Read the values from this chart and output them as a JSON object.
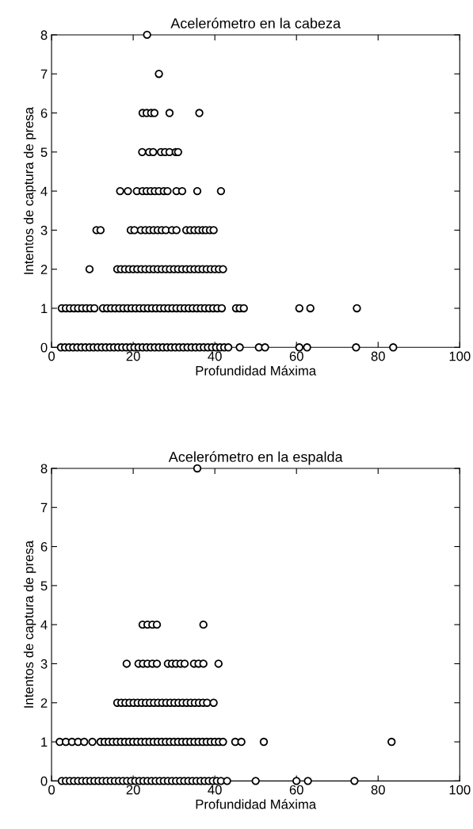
{
  "chart_data": [
    {
      "type": "scatter",
      "title": "Acelerómetro en la cabeza",
      "xlabel": "Profundidad Máxima",
      "ylabel": "Intentos de captura de presa",
      "xlim": [
        0,
        100
      ],
      "ylim": [
        0,
        8
      ],
      "xticks": [
        0,
        20,
        40,
        60,
        80,
        100
      ],
      "yticks": [
        0,
        1,
        2,
        3,
        4,
        5,
        6,
        7,
        8
      ],
      "marker": "circle",
      "grid": false,
      "series": [
        {
          "color": "#000000",
          "x": [
            23.4,
            26.3,
            22.3,
            23.3,
            24.4,
            25.2,
            28.9,
            36.2,
            22.2,
            23.9,
            24.9,
            26.8,
            27.8,
            28.9,
            30.4,
            31.0,
            16.8,
            18.7,
            20.9,
            22.3,
            23.3,
            24.3,
            25.3,
            26.3,
            27.5,
            28.4,
            30.6,
            32.0,
            35.7,
            41.5,
            11.0,
            12.0,
            19.4,
            20.3,
            21.9,
            23,
            24,
            25,
            26,
            27,
            28,
            29.5,
            30.6,
            33,
            34,
            35,
            36,
            37,
            37.8,
            38.8,
            39.7,
            9.3,
            16.1,
            17,
            18,
            19,
            20,
            21,
            22,
            23,
            24,
            25,
            26,
            27,
            28,
            29,
            30,
            31,
            32,
            33,
            34,
            35,
            36,
            37,
            38,
            39,
            40,
            41,
            42,
            2.5,
            3.5,
            4.5,
            5.5,
            6.5,
            7.5,
            8.5,
            9.5,
            10.5,
            12.6,
            13.6,
            14.6,
            15.6,
            16.6,
            17.6,
            18.6,
            19.6,
            20.6,
            21.6,
            22.6,
            23.6,
            24.6,
            25.6,
            26.6,
            27.6,
            28.6,
            29.6,
            30.6,
            31.6,
            32.6,
            33.6,
            34.6,
            35.6,
            36.6,
            37.6,
            38.6,
            39.6,
            40.6,
            41.7,
            45.2,
            46.1,
            47.1,
            60.7,
            63.4,
            74.8,
            2.3,
            3.3,
            4.3,
            5.3,
            6.3,
            7.3,
            8.3,
            9.3,
            10.3,
            11.3,
            12.3,
            13.3,
            14.3,
            15.3,
            16.3,
            17.3,
            18.3,
            19.3,
            20.3,
            21.3,
            22.3,
            23.3,
            24.3,
            25.3,
            26.3,
            27.3,
            28.3,
            29.3,
            30.3,
            31.3,
            32.3,
            33.3,
            34.3,
            35.3,
            36.3,
            37.3,
            38.3,
            39.3,
            40.3,
            41.3,
            42.3,
            43.3,
            46.1,
            50.8,
            52.3,
            60.7,
            62.6,
            74.6,
            83.7
          ],
          "values": [
            8,
            7,
            6,
            6,
            6,
            6,
            6,
            6,
            5,
            5,
            5,
            5,
            5,
            5,
            5,
            5,
            4,
            4,
            4,
            4,
            4,
            4,
            4,
            4,
            4,
            4,
            4,
            4,
            4,
            4,
            3,
            3,
            3,
            3,
            3,
            3,
            3,
            3,
            3,
            3,
            3,
            3,
            3,
            3,
            3,
            3,
            3,
            3,
            3,
            3,
            3,
            2,
            2,
            2,
            2,
            2,
            2,
            2,
            2,
            2,
            2,
            2,
            2,
            2,
            2,
            2,
            2,
            2,
            2,
            2,
            2,
            2,
            2,
            2,
            2,
            2,
            2,
            2,
            2,
            1,
            1,
            1,
            1,
            1,
            1,
            1,
            1,
            1,
            1,
            1,
            1,
            1,
            1,
            1,
            1,
            1,
            1,
            1,
            1,
            1,
            1,
            1,
            1,
            1,
            1,
            1,
            1,
            1,
            1,
            1,
            1,
            1,
            1,
            1,
            1,
            1,
            1,
            1,
            1,
            1,
            1,
            1,
            1,
            1,
            0,
            0,
            0,
            0,
            0,
            0,
            0,
            0,
            0,
            0,
            0,
            0,
            0,
            0,
            0,
            0,
            0,
            0,
            0,
            0,
            0,
            0,
            0,
            0,
            0,
            0,
            0,
            0,
            0,
            0,
            0,
            0,
            0,
            0,
            0,
            0,
            0,
            0,
            0,
            0,
            0,
            0,
            0,
            0,
            0,
            0,
            0,
            0,
            0
          ]
        }
      ]
    },
    {
      "type": "scatter",
      "title": "Acelerómetro en la espalda",
      "xlabel": "Profundidad Máxima",
      "ylabel": "Intentos de captura de presa",
      "xlim": [
        0,
        100
      ],
      "ylim": [
        0,
        8
      ],
      "xticks": [
        0,
        20,
        40,
        60,
        80,
        100
      ],
      "yticks": [
        0,
        1,
        2,
        3,
        4,
        5,
        6,
        7,
        8
      ],
      "marker": "circle",
      "grid": false,
      "series": [
        {
          "color": "#000000",
          "x": [
            35.7,
            22.3,
            23.5,
            24.7,
            25.8,
            37.2,
            18.4,
            21.3,
            22.4,
            23.5,
            24.7,
            25.8,
            28.5,
            29.5,
            30.5,
            31.6,
            32.6,
            34.9,
            36.0,
            37.2,
            40.9,
            16.1,
            17.1,
            18.1,
            19.1,
            20.1,
            21.1,
            22.1,
            23.1,
            24.1,
            25.1,
            26.1,
            27.1,
            28.1,
            29.1,
            30.1,
            31.1,
            32.1,
            33.1,
            34.1,
            35.1,
            36.1,
            37.1,
            38.1,
            39.7,
            2,
            3.5,
            5,
            6.5,
            8,
            10,
            12,
            13,
            14,
            15,
            16,
            17,
            18,
            19,
            20,
            21,
            22,
            23,
            24,
            25,
            26,
            27,
            28,
            29,
            30,
            31,
            32,
            33,
            34,
            35,
            36,
            37,
            38,
            39,
            40,
            41,
            42,
            45,
            46.5,
            52,
            83.3,
            2.5,
            3.5,
            4.5,
            5.5,
            6.5,
            7.5,
            8.5,
            9.5,
            10.5,
            11.5,
            12.5,
            13.5,
            14.5,
            15.5,
            16.5,
            17.5,
            18.5,
            19.5,
            20.5,
            21.5,
            22.5,
            23.5,
            24.5,
            25.5,
            26.5,
            27.5,
            28.5,
            29.5,
            30.5,
            31.5,
            32.5,
            33.5,
            34.5,
            35.5,
            36.5,
            37.5,
            38.5,
            39.5,
            40.5,
            41.5,
            43,
            50,
            60,
            62.8,
            74.2
          ],
          "values": [
            8,
            4,
            4,
            4,
            4,
            4,
            3,
            3,
            3,
            3,
            3,
            3,
            3,
            3,
            3,
            3,
            3,
            3,
            3,
            3,
            3,
            2,
            2,
            2,
            2,
            2,
            2,
            2,
            2,
            2,
            2,
            2,
            2,
            2,
            2,
            2,
            2,
            2,
            2,
            2,
            2,
            2,
            2,
            2,
            2,
            1,
            1,
            1,
            1,
            1,
            1,
            1,
            1,
            1,
            1,
            1,
            1,
            1,
            1,
            1,
            1,
            1,
            1,
            1,
            1,
            1,
            1,
            1,
            1,
            1,
            1,
            1,
            1,
            1,
            1,
            1,
            1,
            1,
            1,
            1,
            1,
            1,
            1,
            1,
            1,
            1,
            0,
            0,
            0,
            0,
            0,
            0,
            0,
            0,
            0,
            0,
            0,
            0,
            0,
            0,
            0,
            0,
            0,
            0,
            0,
            0,
            0,
            0,
            0,
            0,
            0,
            0,
            0,
            0,
            0,
            0,
            0,
            0,
            0,
            0,
            0,
            0,
            0,
            0,
            0,
            0,
            0,
            0,
            0,
            0,
            0
          ]
        }
      ]
    }
  ]
}
